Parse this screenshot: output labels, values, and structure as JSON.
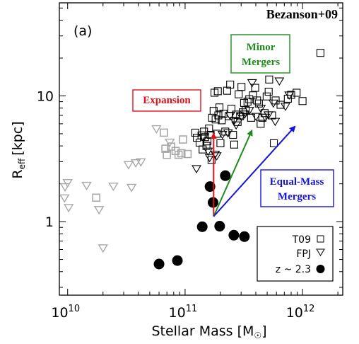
{
  "chart_data": {
    "type": "scatter",
    "panel_label": "(a)",
    "reference": "Bezanson+09",
    "xlabel_main": "Stellar Mass [M",
    "xlabel_sym": "☉",
    "xlabel_end": "]",
    "ylabel_main": "R",
    "ylabel_sub": "eff",
    "ylabel_unit": "[kpc]",
    "xscale": "log",
    "yscale": "log",
    "xlim": [
      8500000000.0,
      2200000000000.0
    ],
    "ylim": [
      0.26,
      55
    ],
    "xticks": [
      {
        "value": 10000000000.0,
        "base": "10",
        "exp": "10"
      },
      {
        "value": 100000000000.0,
        "base": "10",
        "exp": "11"
      },
      {
        "value": 1000000000000.0,
        "base": "10",
        "exp": "12"
      }
    ],
    "yticks": [
      {
        "value": 1,
        "label": "1"
      },
      {
        "value": 10,
        "label": "10"
      }
    ],
    "colors": {
      "expansion": "#e3101a",
      "minor": "#1e8c1e",
      "equal": "#1414e0",
      "faint": "#a8a8a8",
      "dark": "#000000"
    },
    "legend": {
      "position": "bottom-right",
      "entries": [
        {
          "label": "T09",
          "marker": "square"
        },
        {
          "label": "FPJ",
          "marker": "triangle"
        },
        {
          "label": "z ~ 2.3",
          "marker": "circle"
        }
      ]
    },
    "annotations": {
      "expansion": "Expansion",
      "minor_line1": "Minor",
      "minor_line2": "Mergers",
      "equal_line1": "Equal-Mass",
      "equal_line2": "Mergers"
    },
    "arrows": [
      {
        "name": "expansion",
        "from": [
          175000000000.0,
          1.1
        ],
        "to": [
          175000000000.0,
          5.0
        ]
      },
      {
        "name": "minor",
        "from": [
          175000000000.0,
          1.1
        ],
        "to": [
          370000000000.0,
          5.3
        ]
      },
      {
        "name": "equal",
        "from": [
          175000000000.0,
          1.1
        ],
        "to": [
          860000000000.0,
          5.7
        ]
      }
    ],
    "series": [
      {
        "name": "T09 faint",
        "marker": "square",
        "points": [
          [
            17500000000.0,
            1.55
          ],
          [
            66000000000.0,
            5.1
          ],
          [
            68000000000.0,
            3.8
          ],
          [
            70000000000.0,
            3.4
          ],
          [
            76000000000.0,
            3.95
          ],
          [
            83000000000.0,
            3.65
          ],
          [
            88000000000.0,
            3.4
          ],
          [
            93000000000.0,
            3.5
          ],
          [
            96000000000.0,
            4.5
          ],
          [
            105000000000.0,
            3.45
          ]
        ]
      },
      {
        "name": "FPJ faint",
        "marker": "triangle",
        "points": [
          [
            9500000000.0,
            1.9
          ],
          [
            9400000000.0,
            1.55
          ],
          [
            10200000000.0,
            1.3
          ],
          [
            10000000000.0,
            2.05
          ],
          [
            14500000000.0,
            1.95
          ],
          [
            18500000000.0,
            1.25
          ],
          [
            20000000000.0,
            0.62
          ],
          [
            24500000000.0,
            1.92
          ],
          [
            33000000000.0,
            2.85
          ],
          [
            35000000000.0,
            1.88
          ],
          [
            38000000000.0,
            2.95
          ],
          [
            42000000000.0,
            3.0
          ],
          [
            57000000000.0,
            5.5
          ],
          [
            74000000000.0,
            4.3
          ]
        ]
      },
      {
        "name": "T09",
        "marker": "square",
        "points": [
          [
            122000000000.0,
            5.1
          ],
          [
            126000000000.0,
            4.65
          ],
          [
            133000000000.0,
            4.25
          ],
          [
            138000000000.0,
            4.85
          ],
          [
            141000000000.0,
            3.75
          ],
          [
            145000000000.0,
            5.2
          ],
          [
            148000000000.0,
            4.7
          ],
          [
            152000000000.0,
            4.0
          ],
          [
            155000000000.0,
            4.35
          ],
          [
            160000000000.0,
            5.5
          ],
          [
            165000000000.0,
            4.9
          ],
          [
            168000000000.0,
            3.1
          ],
          [
            170000000000.0,
            6.7
          ],
          [
            175000000000.0,
            7.6
          ],
          [
            178000000000.0,
            10.6
          ],
          [
            182000000000.0,
            6.5
          ],
          [
            186000000000.0,
            5.0
          ],
          [
            192000000000.0,
            7.0
          ],
          [
            190000000000.0,
            10.9
          ],
          [
            196000000000.0,
            8.1
          ],
          [
            200000000000.0,
            4.2
          ],
          [
            205000000000.0,
            6.4
          ],
          [
            212000000000.0,
            7.2
          ],
          [
            220000000000.0,
            5.2
          ],
          [
            228000000000.0,
            11.0
          ],
          [
            235000000000.0,
            6.9
          ],
          [
            242000000000.0,
            12.3
          ],
          [
            248000000000.0,
            7.9
          ],
          [
            256000000000.0,
            4.9
          ],
          [
            262000000000.0,
            4.1
          ],
          [
            272000000000.0,
            7.1
          ],
          [
            280000000000.0,
            6.2
          ],
          [
            286000000000.0,
            10.3
          ],
          [
            294000000000.0,
            6.9
          ],
          [
            302000000000.0,
            11.8
          ],
          [
            310000000000.0,
            7.4
          ],
          [
            318000000000.0,
            8.8
          ],
          [
            328000000000.0,
            7.7
          ],
          [
            340000000000.0,
            9.0
          ],
          [
            352000000000.0,
            9.4
          ],
          [
            365000000000.0,
            6.7
          ],
          [
            378000000000.0,
            10.1
          ],
          [
            395000000000.0,
            11.6
          ],
          [
            410000000000.0,
            9.2
          ],
          [
            425000000000.0,
            8.7
          ],
          [
            440000000000.0,
            6.0
          ],
          [
            455000000000.0,
            6.7
          ],
          [
            475000000000.0,
            7.3
          ],
          [
            495000000000.0,
            9.9
          ],
          [
            515000000000.0,
            10.8
          ],
          [
            520000000000.0,
            13.5
          ],
          [
            550000000000.0,
            7.0
          ],
          [
            570000000000.0,
            4.2
          ],
          [
            590000000000.0,
            9.2
          ],
          [
            650000000000.0,
            8.5
          ],
          [
            750000000000.0,
            9.5
          ],
          [
            800000000000.0,
            10.2
          ],
          [
            890000000000.0,
            10.6
          ],
          [
            1000000000000.0,
            9.1
          ],
          [
            1420000000000.0,
            22.0
          ]
        ]
      },
      {
        "name": "FPJ",
        "marker": "triangle",
        "points": [
          [
            125000000000.0,
            2.65
          ],
          [
            143000000000.0,
            4.65
          ],
          [
            157000000000.0,
            3.65
          ],
          [
            162000000000.0,
            3.25
          ],
          [
            180000000000.0,
            3.45
          ],
          [
            186000000000.0,
            3.35
          ],
          [
            208000000000.0,
            4.95
          ],
          [
            232000000000.0,
            5.1
          ],
          [
            242000000000.0,
            7.0
          ],
          [
            262000000000.0,
            6.4
          ],
          [
            272000000000.0,
            5.9
          ],
          [
            302000000000.0,
            6.9
          ],
          [
            322000000000.0,
            7.2
          ],
          [
            352000000000.0,
            7.7
          ],
          [
            372000000000.0,
            12.8
          ],
          [
            402000000000.0,
            6.9
          ],
          [
            442000000000.0,
            8.0
          ],
          [
            472000000000.0,
            18.8
          ],
          [
            482000000000.0,
            6.8
          ],
          [
            512000000000.0,
            7.1
          ],
          [
            565000000000.0,
            8.8
          ],
          [
            585000000000.0,
            6.3
          ],
          [
            635000000000.0,
            13.2
          ],
          [
            715000000000.0,
            8.3
          ],
          [
            770000000000.0,
            10.2
          ]
        ]
      },
      {
        "name": "z ~ 2.3",
        "marker": "circle",
        "points": [
          [
            60000000000.0,
            0.46
          ],
          [
            86000000000.0,
            0.49
          ],
          [
            140000000000.0,
            0.91
          ],
          [
            163000000000.0,
            1.9
          ],
          [
            173000000000.0,
            1.42
          ],
          [
            220000000000.0,
            2.32
          ],
          [
            197000000000.0,
            0.92
          ],
          [
            260000000000.0,
            0.78
          ],
          [
            320000000000.0,
            0.76
          ]
        ]
      }
    ]
  }
}
